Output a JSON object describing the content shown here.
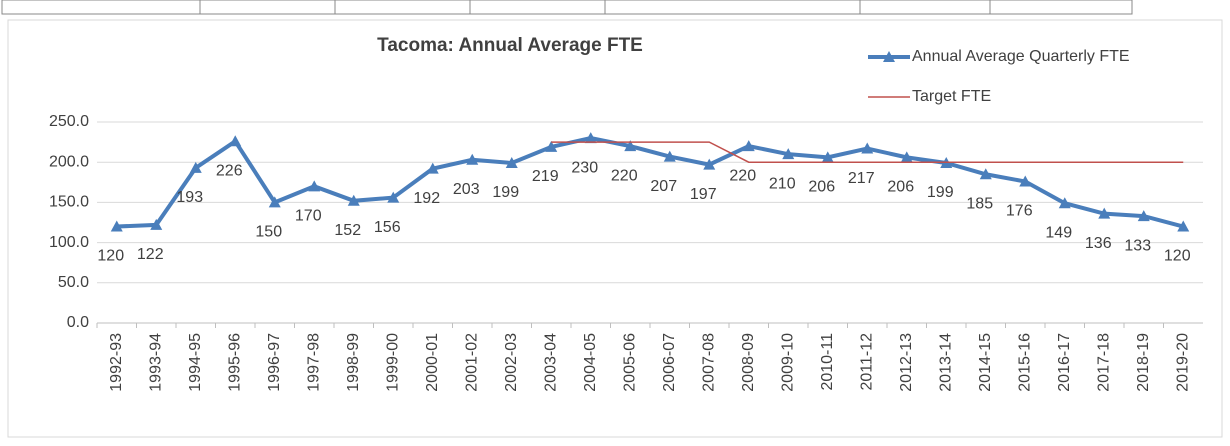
{
  "chart_data": {
    "type": "line",
    "title": "Tacoma: Annual Average FTE",
    "categories": [
      "1992-93",
      "1993-94",
      "1994-95",
      "1995-96",
      "1996-97",
      "1997-98",
      "1998-99",
      "1999-00",
      "2000-01",
      "2001-02",
      "2002-03",
      "2003-04",
      "2004-05",
      "2005-06",
      "2006-07",
      "2007-08",
      "2008-09",
      "2009-10",
      "2010-11",
      "2011-12",
      "2012-13",
      "2013-14",
      "2014-15",
      "2015-16",
      "2016-17",
      "2017-18",
      "2018-19",
      "2019-20"
    ],
    "series": [
      {
        "name": "Annual Average Quarterly FTE",
        "color": "#4a7ebb",
        "marker": "triangle",
        "data_labels": true,
        "values": [
          120,
          122,
          193,
          226,
          150,
          170,
          152,
          156,
          192,
          203,
          199,
          219,
          230,
          220,
          207,
          197,
          220,
          210,
          206,
          217,
          206,
          199,
          185,
          176,
          149,
          136,
          133,
          120
        ]
      },
      {
        "name": "Target FTE",
        "color": "#c0504d",
        "values": [
          null,
          null,
          null,
          null,
          null,
          null,
          null,
          null,
          null,
          null,
          null,
          225,
          225,
          225,
          225,
          225,
          200,
          200,
          200,
          200,
          200,
          200,
          200,
          200,
          200,
          200,
          200,
          200
        ]
      }
    ],
    "ylim": [
      0,
      250
    ],
    "yticks": [
      {
        "value": 0,
        "label": "0.0"
      },
      {
        "value": 50,
        "label": "50.0"
      },
      {
        "value": 100,
        "label": "100.0"
      },
      {
        "value": 150,
        "label": "150.0"
      },
      {
        "value": 200,
        "label": "200.0"
      },
      {
        "value": 250,
        "label": "250.0"
      }
    ],
    "grid": true,
    "legend": "top-right"
  }
}
